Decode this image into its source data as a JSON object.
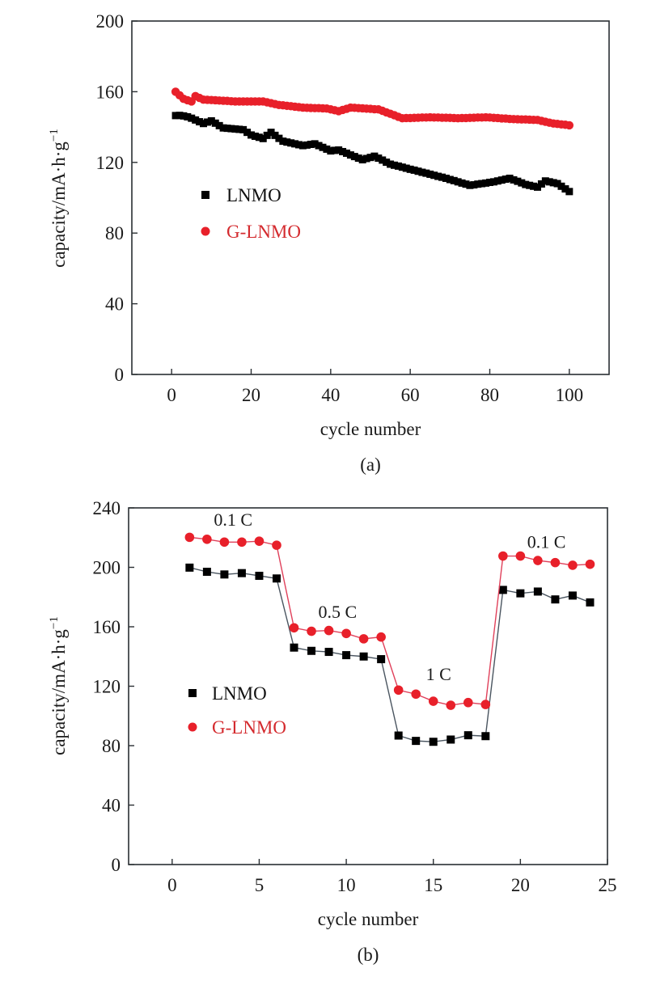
{
  "chart_data": [
    {
      "id": "a",
      "type": "scatter",
      "caption": "(a)",
      "xlabel": "cycle number",
      "ylabel": "capacity/mA·h·g",
      "ylabel_sup": "−1",
      "xlim": [
        -10,
        110
      ],
      "ylim": [
        0,
        200
      ],
      "xticks": [
        0,
        20,
        40,
        60,
        80,
        100
      ],
      "yticks": [
        0,
        40,
        80,
        120,
        160,
        200
      ],
      "grid": false,
      "legend_position": "center-left",
      "series": [
        {
          "name": "LNMO",
          "color": "#000000",
          "marker": "square",
          "line": false,
          "x": [
            1,
            2,
            3,
            4,
            5,
            6,
            7,
            8,
            9,
            10,
            11,
            12,
            13,
            14,
            15,
            16,
            17,
            18,
            19,
            20,
            21,
            22,
            23,
            24,
            25,
            26,
            27,
            28,
            29,
            30,
            31,
            32,
            33,
            34,
            35,
            36,
            37,
            38,
            39,
            40,
            41,
            42,
            43,
            44,
            45,
            46,
            47,
            48,
            49,
            50,
            51,
            52,
            53,
            54,
            55,
            56,
            57,
            58,
            59,
            60,
            61,
            62,
            63,
            64,
            65,
            66,
            67,
            68,
            69,
            70,
            71,
            72,
            73,
            74,
            75,
            76,
            77,
            78,
            79,
            80,
            81,
            82,
            83,
            84,
            85,
            86,
            87,
            88,
            89,
            90,
            91,
            92,
            93,
            94,
            95,
            96,
            97,
            98,
            99,
            100
          ],
          "values": [
            146.5,
            146.6,
            146.3,
            145.8,
            145.0,
            144.0,
            143.0,
            142.0,
            142.8,
            143.5,
            142.2,
            140.8,
            139.5,
            139.3,
            139.1,
            138.9,
            138.7,
            138.5,
            137.0,
            135.5,
            134.8,
            134.2,
            133.5,
            135.3,
            137.0,
            135.3,
            133.6,
            132.0,
            131.5,
            131.0,
            130.5,
            130.0,
            129.5,
            129.8,
            130.2,
            130.5,
            129.5,
            128.5,
            127.5,
            126.5,
            126.8,
            127.0,
            126.1,
            125.2,
            124.2,
            123.3,
            122.4,
            121.5,
            122.2,
            122.8,
            123.5,
            122.4,
            121.3,
            120.1,
            119.0,
            118.4,
            117.9,
            117.3,
            116.7,
            116.1,
            115.6,
            115.0,
            114.4,
            113.9,
            113.3,
            112.7,
            112.1,
            111.6,
            111.0,
            110.3,
            109.7,
            109.0,
            108.3,
            107.7,
            107.0,
            107.3,
            107.7,
            108.0,
            108.3,
            108.7,
            109.0,
            109.5,
            110.0,
            110.5,
            111.0,
            110.1,
            109.3,
            108.4,
            107.5,
            107.0,
            106.5,
            106.0,
            107.8,
            109.5,
            109.0,
            108.5,
            108.0,
            106.5,
            105.0,
            103.5
          ]
        },
        {
          "name": "G-LNMO",
          "color": "#e8202a",
          "marker": "circle",
          "line": false,
          "x": [
            1,
            2,
            3,
            4,
            5,
            6,
            7,
            8,
            9,
            10,
            11,
            12,
            13,
            14,
            15,
            16,
            17,
            18,
            19,
            20,
            21,
            22,
            23,
            24,
            25,
            26,
            27,
            28,
            29,
            30,
            31,
            32,
            33,
            34,
            35,
            36,
            37,
            38,
            39,
            40,
            41,
            42,
            43,
            44,
            45,
            46,
            47,
            48,
            49,
            50,
            51,
            52,
            53,
            54,
            55,
            56,
            57,
            58,
            59,
            60,
            61,
            62,
            63,
            64,
            65,
            66,
            67,
            68,
            69,
            70,
            71,
            72,
            73,
            74,
            75,
            76,
            77,
            78,
            79,
            80,
            81,
            82,
            83,
            84,
            85,
            86,
            87,
            88,
            89,
            90,
            91,
            92,
            93,
            94,
            95,
            96,
            97,
            98,
            99,
            100
          ],
          "values": [
            160.0,
            158.0,
            156.0,
            155.2,
            154.5,
            157.5,
            156.5,
            155.5,
            155.4,
            155.3,
            155.2,
            155.0,
            154.9,
            154.8,
            154.6,
            154.5,
            154.5,
            154.5,
            154.5,
            154.5,
            154.5,
            154.5,
            154.5,
            154.0,
            153.5,
            153.0,
            152.5,
            152.3,
            152.0,
            151.8,
            151.5,
            151.3,
            151.0,
            150.9,
            150.8,
            150.7,
            150.7,
            150.6,
            150.5,
            150.0,
            149.5,
            149.0,
            149.7,
            150.3,
            151.0,
            150.9,
            150.7,
            150.6,
            150.4,
            150.3,
            150.1,
            150.0,
            149.2,
            148.3,
            147.5,
            146.7,
            145.8,
            145.0,
            145.1,
            145.1,
            145.2,
            145.3,
            145.4,
            145.4,
            145.5,
            145.4,
            145.4,
            145.3,
            145.3,
            145.2,
            145.1,
            145.0,
            145.1,
            145.1,
            145.2,
            145.3,
            145.4,
            145.4,
            145.5,
            145.4,
            145.2,
            145.1,
            144.9,
            144.8,
            144.6,
            144.5,
            144.4,
            144.3,
            144.3,
            144.2,
            144.1,
            144.0,
            143.5,
            143.0,
            142.5,
            142.0,
            141.8,
            141.5,
            141.3,
            141.0
          ]
        }
      ]
    },
    {
      "id": "b",
      "type": "line",
      "caption": "(b)",
      "xlabel": "cycle number",
      "ylabel": "capacity/mA·h·g",
      "ylabel_sup": "−1",
      "xlim": [
        -2.5,
        25
      ],
      "ylim": [
        0,
        240
      ],
      "xticks": [
        0,
        5,
        10,
        15,
        20,
        25
      ],
      "yticks": [
        0,
        40,
        80,
        120,
        160,
        200,
        240
      ],
      "grid": false,
      "legend_position": "center-left",
      "annotations": [
        {
          "text": "0.1 C",
          "x": 3.5,
          "y": 228
        },
        {
          "text": "0.5 C",
          "x": 9.5,
          "y": 166
        },
        {
          "text": "1 C",
          "x": 15.3,
          "y": 124
        },
        {
          "text": "0.1 C",
          "x": 21.5,
          "y": 213
        }
      ],
      "series": [
        {
          "name": "LNMO",
          "color": "#000000",
          "line_color": "#4a5560",
          "marker": "square",
          "x": [
            1,
            2,
            3,
            4,
            5,
            6,
            7,
            8,
            9,
            10,
            11,
            12,
            13,
            14,
            15,
            16,
            17,
            18,
            19,
            20,
            21,
            22,
            23,
            24
          ],
          "values": [
            199.8,
            197.0,
            195.2,
            196.1,
            194.3,
            192.5,
            146.0,
            143.8,
            143.1,
            140.9,
            140.0,
            138.2,
            86.8,
            83.2,
            82.6,
            84.1,
            87.0,
            86.4,
            184.8,
            182.5,
            183.7,
            178.4,
            181.0,
            176.4
          ]
        },
        {
          "name": "G-LNMO",
          "color": "#e8202a",
          "line_color": "#e0405a",
          "marker": "circle",
          "x": [
            1,
            2,
            3,
            4,
            5,
            6,
            7,
            8,
            9,
            10,
            11,
            12,
            13,
            14,
            15,
            16,
            17,
            18,
            19,
            20,
            21,
            22,
            23,
            24
          ],
          "values": [
            220.2,
            218.9,
            217.0,
            217.0,
            217.6,
            214.9,
            159.3,
            157.0,
            157.5,
            155.5,
            151.9,
            153.1,
            117.4,
            114.7,
            109.9,
            107.2,
            109.0,
            107.7,
            207.6,
            207.6,
            204.6,
            203.2,
            201.4,
            202.1
          ]
        }
      ]
    }
  ]
}
